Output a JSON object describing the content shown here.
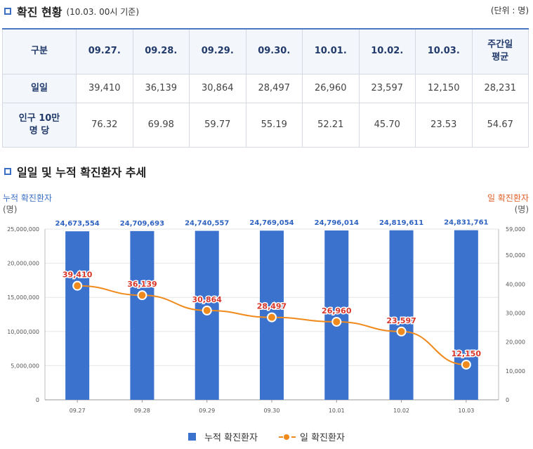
{
  "section1": {
    "title": "확진 현황",
    "subtitle": "(10.03. 00시 기준)",
    "unit": "(단위 : 명)"
  },
  "table": {
    "header_label": "구분",
    "dates": [
      "09.27.",
      "09.28.",
      "09.29.",
      "09.30.",
      "10.01.",
      "10.02.",
      "10.03."
    ],
    "avg_label_line1": "주간일",
    "avg_label_line2": "평균",
    "row_daily": {
      "label": "일일",
      "values": [
        "39,410",
        "36,139",
        "30,864",
        "28,497",
        "26,960",
        "23,597",
        "12,150"
      ],
      "avg": "28,231"
    },
    "row_per100k": {
      "label_line1": "인구 10만",
      "label_line2": "명 당",
      "values": [
        "76.32",
        "69.98",
        "59.77",
        "55.19",
        "52.21",
        "45.70",
        "23.53"
      ],
      "avg": "54.67"
    }
  },
  "section2": {
    "title": "일일 및 누적 확진환자 추세"
  },
  "chart_labels": {
    "left_title": "누적 확진환자",
    "left_unit": "(명)",
    "right_title": "일 확진환자",
    "right_unit": "(명)"
  },
  "chart_data": {
    "type": "bar+line",
    "categories": [
      "09.27",
      "09.28",
      "09.29",
      "09.30",
      "10.01",
      "10.02",
      "10.03"
    ],
    "series": [
      {
        "name": "누적 확진환자",
        "type": "bar",
        "axis": "left",
        "values": [
          24673554,
          24709693,
          24740557,
          24769054,
          24796014,
          24819611,
          24831761
        ],
        "labels": [
          "24,673,554",
          "24,709,693",
          "24,740,557",
          "24,769,054",
          "24,796,014",
          "24,819,611",
          "24,831,761"
        ],
        "color": "#3a72cd"
      },
      {
        "name": "일 확진환자",
        "type": "line",
        "axis": "right",
        "values": [
          39410,
          36139,
          30864,
          28497,
          26960,
          23597,
          12150
        ],
        "labels": [
          "39,410",
          "36,139",
          "30,864",
          "28,497",
          "26,960",
          "23,597",
          "12,150"
        ],
        "color": "#f08a1c"
      }
    ],
    "left_axis": {
      "ylim": [
        0,
        25000000
      ],
      "ticks": [
        0,
        5000000,
        10000000,
        15000000,
        20000000,
        25000000
      ],
      "tick_labels": [
        "0",
        "5,000,000",
        "10,000,000",
        "15,000,000",
        "20,000,000",
        "25,000,000"
      ]
    },
    "right_axis": {
      "ylim": [
        0,
        59000
      ],
      "ticks": [
        0,
        10000,
        20000,
        30000,
        40000,
        50000,
        59000
      ],
      "tick_labels": [
        "0",
        "10,000",
        "20,000",
        "30,000",
        "40,000",
        "50,000",
        "59,000"
      ]
    },
    "grid": true,
    "legend_position": "bottom"
  }
}
